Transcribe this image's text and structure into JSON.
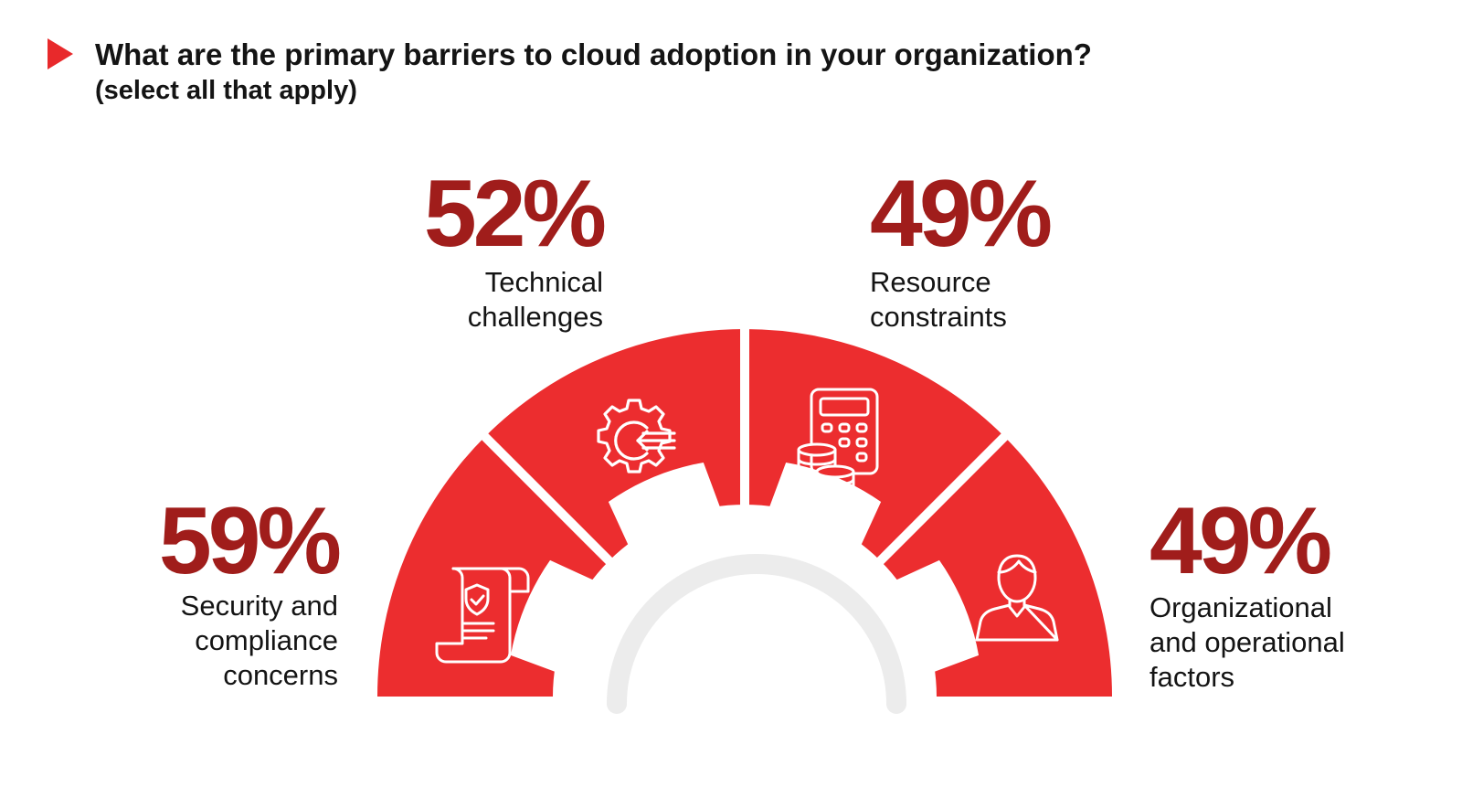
{
  "question": {
    "title": "What are the primary barriers to cloud adoption in your organization?",
    "subtitle": "(select all that apply)"
  },
  "colors": {
    "accent": "#ec2d2f",
    "percent_text": "#a01d1b",
    "gauge_track": "#ececec",
    "marker": "#e8292b"
  },
  "chart_data": {
    "type": "bar",
    "categories": [
      "Security and compliance concerns",
      "Technical challenges",
      "Resource constraints",
      "Organizational and operational factors"
    ],
    "values": [
      59,
      52,
      49,
      49
    ],
    "value_labels": [
      "59%",
      "52%",
      "49%",
      "49%"
    ],
    "category_labels": [
      "Security and\ncompliance\nconcerns",
      "Technical\nchallenges",
      "Resource\nconstraints",
      "Organizational\nand operational\nfactors"
    ],
    "icons": [
      "certificate-shield-icon",
      "gear-arrow-icon",
      "calculator-coins-icon",
      "person-icon"
    ],
    "unit": "%"
  }
}
